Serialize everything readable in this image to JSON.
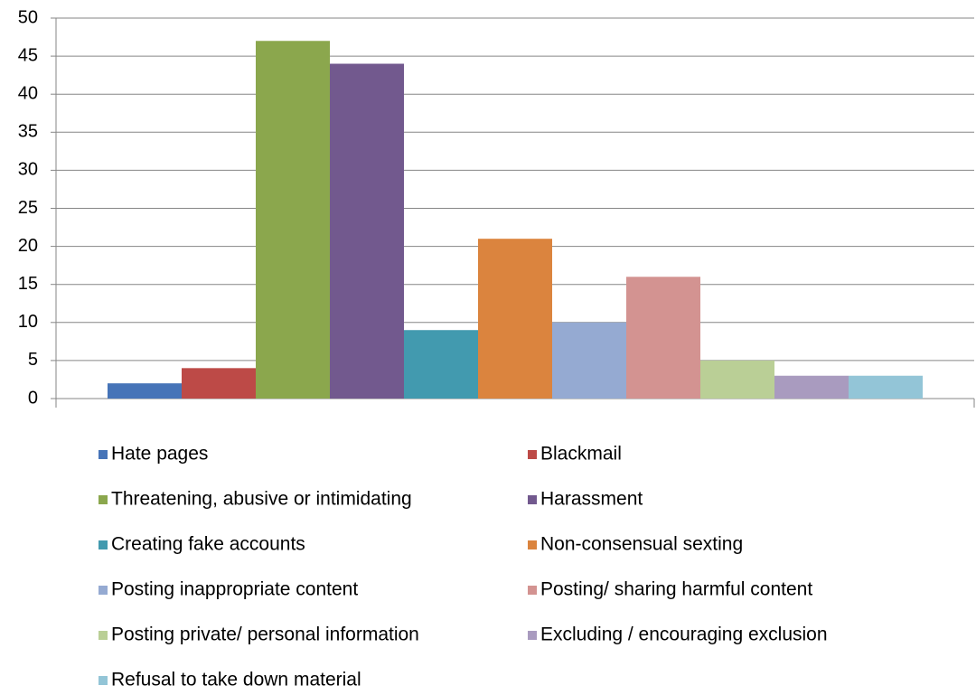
{
  "chart_data": {
    "type": "bar",
    "categories": [
      null
    ],
    "series": [
      {
        "name": "Hate pages",
        "color": "#4674b8",
        "values": [
          2
        ]
      },
      {
        "name": "Blackmail",
        "color": "#bd4a47",
        "values": [
          4
        ]
      },
      {
        "name": "Threatening, abusive or intimidating",
        "color": "#8ba74d",
        "values": [
          47
        ]
      },
      {
        "name": "Harassment",
        "color": "#72598e",
        "values": [
          44
        ]
      },
      {
        "name": "Creating fake accounts",
        "color": "#429aaf",
        "values": [
          9
        ]
      },
      {
        "name": "Non-consensual sexting",
        "color": "#db843e",
        "values": [
          21
        ]
      },
      {
        "name": "Posting inappropriate content",
        "color": "#95aad2",
        "values": [
          10
        ]
      },
      {
        "name": "Posting/ sharing harmful content",
        "color": "#d39391",
        "values": [
          16
        ]
      },
      {
        "name": "Posting private/ personal information",
        "color": "#bacf96",
        "values": [
          5
        ]
      },
      {
        "name": "Excluding / encouraging exclusion",
        "color": "#a99bbf",
        "values": [
          3
        ]
      },
      {
        "name": "Refusal to take down material",
        "color": "#93c5d7",
        "values": [
          3
        ]
      }
    ],
    "ylim": [
      0,
      50
    ],
    "yticks": [
      0,
      5,
      10,
      15,
      20,
      25,
      30,
      35,
      40,
      45,
      50
    ],
    "grid": true,
    "legend": "bottom"
  }
}
